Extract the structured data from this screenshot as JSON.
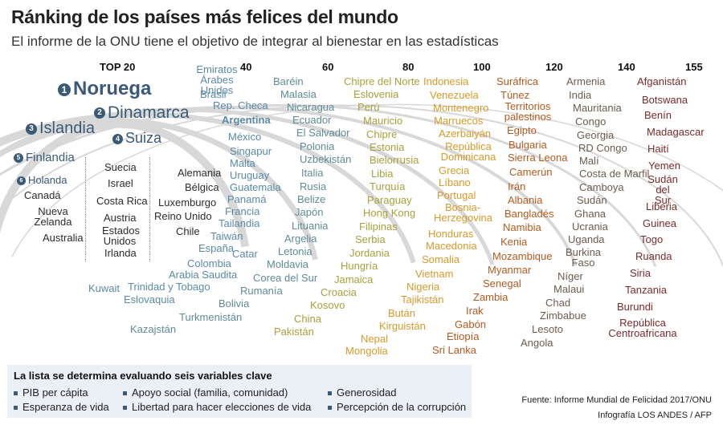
{
  "title": "Ránking de los países más felices del mundo",
  "subtitle": "El informe de la ONU tiene el objetivo de integrar al bienestar en las estadísticas",
  "colors": {
    "top20": "#3a5a78",
    "b40": "#5a8aa6",
    "b60": "#5f8b98",
    "b80": "#a9a03c",
    "b100": "#d69a2a",
    "b120": "#b55a1e",
    "b140": "#6e5b4f",
    "b155": "#7a2a2a"
  },
  "scale": {
    "top": "TOP 20",
    "marks": [
      "40",
      "60",
      "80",
      "100",
      "120",
      "140",
      "155"
    ]
  },
  "top_ranked": [
    {
      "n": "1",
      "name": "Noruega"
    },
    {
      "n": "2",
      "name": "Dinamarca"
    },
    {
      "n": "3",
      "name": "Islandia"
    },
    {
      "n": "4",
      "name": "Suiza"
    },
    {
      "n": "5",
      "name": "Finlandia"
    },
    {
      "n": "6",
      "name": "Holanda"
    }
  ],
  "top20_rest": [
    "Canadá",
    "Nueva Zelanda",
    "Australia",
    "Suecia",
    "Israel",
    "Costa Rica",
    "Austria",
    "Estados Unidos",
    "Irlanda",
    "Alemania",
    "Bélgica",
    "Luxemburgo",
    "Reino Unido",
    "Chile"
  ],
  "band_40": [
    "Emiratos Árabes Unidos",
    "Brasil",
    "Rep. Checa",
    "Argentina",
    "México",
    "Singapur",
    "Malta",
    "Uruguay",
    "Guatemala",
    "Panamá",
    "Francia",
    "Tailandia",
    "Taiwán",
    "España",
    "Catar",
    "Colombia",
    "Arabia Saudita",
    "Kuwait",
    "Trinidad y Tobago",
    "Eslovaquia"
  ],
  "band_60": [
    "Baréin",
    "Malasia",
    "Nicaragua",
    "Ecuador",
    "El Salvador",
    "Polonia",
    "Uzbekistán",
    "Italia",
    "Rusia",
    "Belize",
    "Japón",
    "Lituania",
    "Argelia",
    "Letonia",
    "Moldavia",
    "Corea del Sur",
    "Rumanía",
    "Bolivia",
    "Turkmenistán",
    "Kazajstán"
  ],
  "band_80": [
    "Chipre del Norte",
    "Eslovenia",
    "Perú",
    "Mauricio",
    "Chipre",
    "Estonia",
    "Bielorrusia",
    "Libia",
    "Turquía",
    "Paraguay",
    "Hong Kong",
    "Filipinas",
    "Serbia",
    "Jordania",
    "Hungría",
    "Jamaica",
    "Croacia",
    "Kosovo",
    "China",
    "Pakistán"
  ],
  "band_100": [
    "Indonesia",
    "Venezuela",
    "Montenegro",
    "Marruecos",
    "Azerbaiyán",
    "República Dominicana",
    "Grecia",
    "Líbano",
    "Portugal",
    "Bosnia-Herzegovina",
    "Honduras",
    "Macedonia",
    "Somalia",
    "Vietnam",
    "Nigeria",
    "Tajikistán",
    "Bután",
    "Kirguistán",
    "Nepal",
    "Mongolia"
  ],
  "band_120": [
    "Suráfrica",
    "Túnez",
    "Territorios palestinos",
    "Egipto",
    "Bulgaria",
    "Sierra Leona",
    "Camerún",
    "Irán",
    "Albania",
    "Bangladés",
    "Namibia",
    "Kenia",
    "Mozambique",
    "Myanmar",
    "Senegal",
    "Zambia",
    "Irak",
    "Gabón",
    "Etiopía",
    "Sri Lanka"
  ],
  "band_140": [
    "Armenia",
    "India",
    "Mauritania",
    "Congo",
    "Georgia",
    "RD Congo",
    "Malí",
    "Costa de Marfil",
    "Camboya",
    "Sudán",
    "Ghana",
    "Ucrania",
    "Uganda",
    "Burkina Faso",
    "Níger",
    "Malaui",
    "Chad",
    "Zimbabue",
    "Lesoto",
    "Angola"
  ],
  "band_155": [
    "Afganistán",
    "Botswana",
    "Benín",
    "Madagascar",
    "Haití",
    "Yemen",
    "Sudán del Sur",
    "Liberia",
    "Guinea",
    "Togo",
    "Ruanda",
    "Siria",
    "Tanzania",
    "Burundi",
    "República Centroafricana"
  ],
  "legend": {
    "title": "La lista se determina evaluando seis variables clave",
    "variables": [
      "PIB per cápita",
      "Esperanza de vida",
      "Apoyo social (familia, comunidad)",
      "Libertad para hacer elecciones de vida",
      "Generosidad",
      "Percepción de la corrupción"
    ]
  },
  "source": "Fuente: Informe Mundial de Felicidad 2017/ONU",
  "credit": "Infografía LOS ANDES / AFP"
}
